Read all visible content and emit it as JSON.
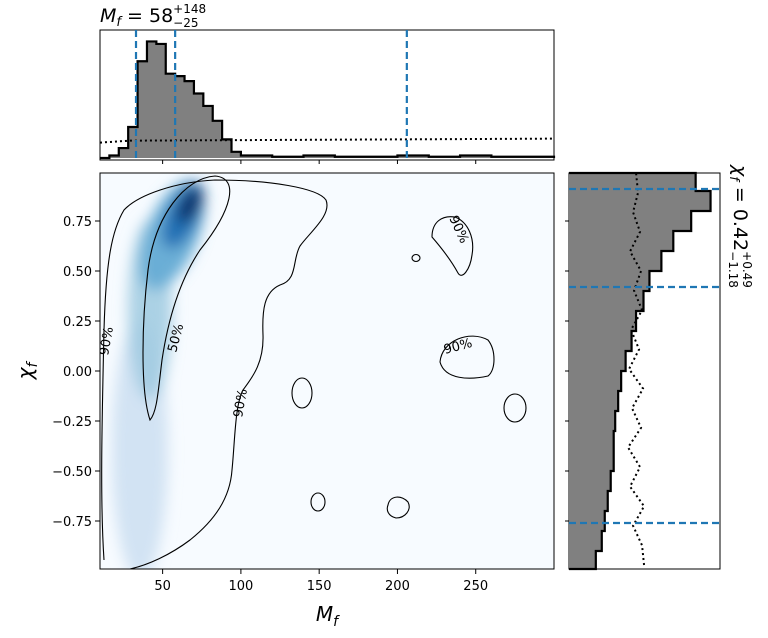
{
  "chart_data": {
    "type": "corner",
    "title_top": "M_f = 58 (+148, −25)",
    "title_top_parts": {
      "symbol": "M",
      "sub": "f",
      "equals": " = ",
      "median": "58",
      "plus": "+148",
      "minus": "−25"
    },
    "title_right": "χ_f = 0.42 (+0.49, −1.18)",
    "title_right_parts": {
      "symbol": "χ",
      "sub": "f",
      "equals": " = ",
      "median": "0.42",
      "plus": "+0.49",
      "minus": "−1.18"
    },
    "xlabel": "M_f",
    "xlabel_parts": {
      "symbol": "M",
      "sub": "f"
    },
    "ylabel": "χ_f",
    "ylabel_parts": {
      "symbol": "χ",
      "sub": "f"
    },
    "xlim": [
      10,
      300
    ],
    "ylim": [
      -0.99,
      0.99
    ],
    "x_ticks": [
      50,
      100,
      150,
      200,
      250
    ],
    "x_tick_labels": [
      "50",
      "100",
      "150",
      "200",
      "250"
    ],
    "y_ticks": [
      0.75,
      0.5,
      0.25,
      0.0,
      -0.25,
      -0.5,
      -0.75
    ],
    "y_tick_labels": [
      "0.75",
      "0.50",
      "0.25",
      "0.00",
      "−0.25",
      "−0.50",
      "−0.75"
    ],
    "colormap": "Blues",
    "hist_fill_color": "#808080",
    "quantile_line_color": "#1f77b4",
    "contour_labels": [
      "50%",
      "90%",
      "90%",
      "90%",
      "90%"
    ],
    "mf_quantiles": [
      33,
      58,
      206
    ],
    "chi_quantiles": [
      -0.76,
      0.42,
      0.91
    ],
    "mf_posterior_hist": {
      "bins": [
        10,
        16,
        22,
        28,
        34,
        40,
        46,
        52,
        58,
        64,
        70,
        76,
        82,
        88,
        94,
        100,
        120,
        140,
        160,
        180,
        200,
        220,
        240,
        260,
        280,
        300
      ],
      "density": [
        0.0,
        0.02,
        0.08,
        0.25,
        0.78,
        0.94,
        0.92,
        0.68,
        0.66,
        0.62,
        0.52,
        0.42,
        0.3,
        0.15,
        0.05,
        0.02,
        0.01,
        0.02,
        0.01,
        0.01,
        0.02,
        0.01,
        0.02,
        0.01,
        0.01
      ]
    },
    "mf_prior_hist_level": 0.14,
    "chi_posterior_hist": {
      "bins": [
        -0.99,
        -0.9,
        -0.8,
        -0.7,
        -0.6,
        -0.5,
        -0.4,
        -0.3,
        -0.2,
        -0.1,
        0.0,
        0.1,
        0.2,
        0.3,
        0.4,
        0.5,
        0.6,
        0.7,
        0.8,
        0.9,
        0.99
      ],
      "density": [
        0.18,
        0.22,
        0.24,
        0.26,
        0.28,
        0.3,
        0.3,
        0.31,
        0.33,
        0.35,
        0.38,
        0.42,
        0.45,
        0.5,
        0.54,
        0.62,
        0.7,
        0.82,
        0.95,
        0.85
      ]
    },
    "chi_prior_hist_level": 0.45
  }
}
